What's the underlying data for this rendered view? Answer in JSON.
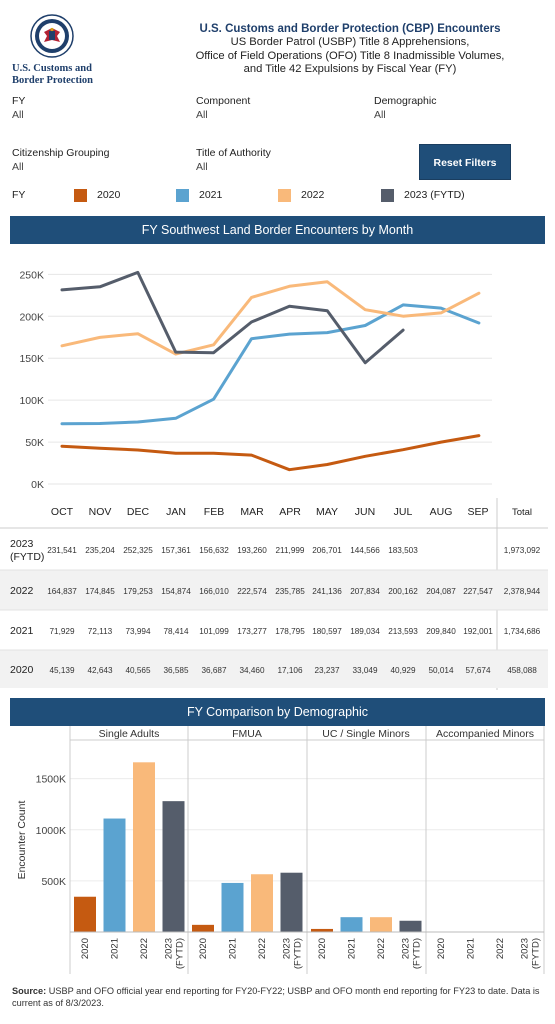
{
  "header": {
    "title": "U.S. Customs and Border Protection (CBP) Encounters",
    "subtitle_lines": [
      "US Border Patrol (USBP) Title 8 Apprehensions,",
      "Office of Field Operations (OFO) Title 8 Inadmissible Volumes,",
      "and Title 42 Expulsions by Fiscal Year (FY)"
    ],
    "logo_lines": [
      "U.S. Customs and",
      "Border Protection"
    ]
  },
  "filters": {
    "fy": {
      "label": "FY",
      "value": "All"
    },
    "component": {
      "label": "Component",
      "value": "All"
    },
    "demographic": {
      "label": "Demographic",
      "value": "All"
    },
    "citizenship": {
      "label": "Citizenship Grouping",
      "value": "All"
    },
    "authority": {
      "label": "Title of Authority",
      "value": "All"
    },
    "reset_label": "Reset Filters"
  },
  "legend": {
    "label": "FY",
    "items": [
      {
        "name": "2020",
        "color": "#c55a11"
      },
      {
        "name": "2021",
        "color": "#5ba3d0"
      },
      {
        "name": "2022",
        "color": "#f9b97a"
      },
      {
        "name": "2023 (FYTD)",
        "color": "#555d6b"
      }
    ]
  },
  "section1_title": "FY Southwest Land Border Encounters by Month",
  "section2_title": "FY Comparison by Demographic",
  "chart_data": [
    {
      "type": "line",
      "categories": [
        "OCT",
        "NOV",
        "DEC",
        "JAN",
        "FEB",
        "MAR",
        "APR",
        "MAY",
        "JUN",
        "JUL",
        "AUG",
        "SEP"
      ],
      "ylim": [
        0,
        260000
      ],
      "yticks": [
        "0K",
        "50K",
        "100K",
        "150K",
        "200K",
        "250K"
      ],
      "grid": true,
      "series": [
        {
          "name": "2020",
          "color": "#c55a11",
          "values": [
            45139,
            42643,
            40565,
            36585,
            36687,
            34460,
            17106,
            23237,
            33049,
            40929,
            50014,
            57674
          ]
        },
        {
          "name": "2021",
          "color": "#5ba3d0",
          "values": [
            71929,
            72113,
            73994,
            78414,
            101099,
            173277,
            178795,
            180597,
            189034,
            213593,
            209840,
            192001
          ]
        },
        {
          "name": "2022",
          "color": "#f9b97a",
          "values": [
            164837,
            174845,
            179253,
            154874,
            166010,
            222574,
            235785,
            241136,
            207834,
            200162,
            204087,
            227547
          ]
        },
        {
          "name": "2023 (FYTD)",
          "color": "#555d6b",
          "values": [
            231541,
            235204,
            252325,
            157361,
            156632,
            193260,
            211999,
            206701,
            144566,
            183503,
            null,
            null
          ]
        }
      ]
    },
    {
      "type": "table",
      "columns": [
        "OCT",
        "NOV",
        "DEC",
        "JAN",
        "FEB",
        "MAR",
        "APR",
        "MAY",
        "JUN",
        "JUL",
        "AUG",
        "SEP",
        "Total"
      ],
      "rows": [
        {
          "label": "2023 (FYTD)",
          "cells": [
            "231,541",
            "235,204",
            "252,325",
            "157,361",
            "156,632",
            "193,260",
            "211,999",
            "206,701",
            "144,566",
            "183,503",
            "",
            "",
            "1,973,092"
          ]
        },
        {
          "label": "2022",
          "cells": [
            "164,837",
            "174,845",
            "179,253",
            "154,874",
            "166,010",
            "222,574",
            "235,785",
            "241,136",
            "207,834",
            "200,162",
            "204,087",
            "227,547",
            "2,378,944"
          ]
        },
        {
          "label": "2021",
          "cells": [
            "71,929",
            "72,113",
            "73,994",
            "78,414",
            "101,099",
            "173,277",
            "178,795",
            "180,597",
            "189,034",
            "213,593",
            "209,840",
            "192,001",
            "1,734,686"
          ]
        },
        {
          "label": "2020",
          "cells": [
            "45,139",
            "42,643",
            "40,565",
            "36,585",
            "36,687",
            "34,460",
            "17,106",
            "23,237",
            "33,049",
            "40,929",
            "50,014",
            "57,674",
            "458,088"
          ]
        }
      ]
    },
    {
      "type": "bar",
      "ylabel": "Encounter Count",
      "ylim": [
        0,
        1800000
      ],
      "yticks": [
        "500K",
        "1000K",
        "1500K"
      ],
      "panels": [
        "Single Adults",
        "FMUA",
        "UC / Single Minors",
        "Accompanied Minors"
      ],
      "categories": [
        "2020",
        "2021",
        "2022",
        "2023 (FYTD)"
      ],
      "colors": [
        "#c55a11",
        "#5ba3d0",
        "#f9b97a",
        "#555d6b"
      ],
      "values": [
        [
          345000,
          1110000,
          1660000,
          1280000
        ],
        [
          70000,
          480000,
          565000,
          580000
        ],
        [
          30000,
          145000,
          145000,
          110000
        ],
        [
          0,
          0,
          0,
          0
        ]
      ]
    }
  ],
  "footer": {
    "bold": "Source:",
    "text": " USBP and OFO official year end reporting for FY20-FY22; USBP and OFO month end reporting for FY23 to date. Data is current as of 8/3/2023."
  }
}
